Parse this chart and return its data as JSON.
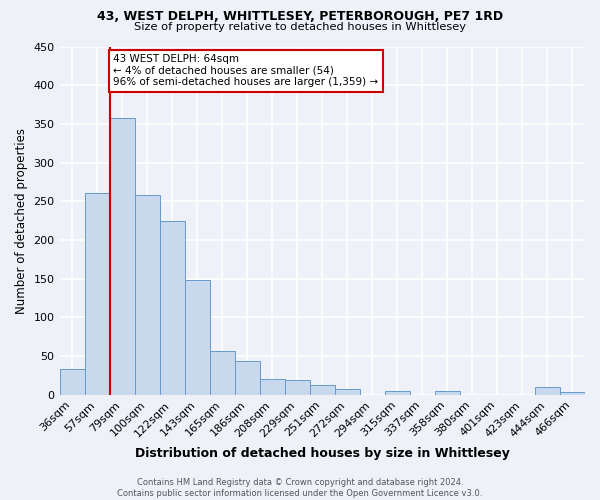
{
  "title": "43, WEST DELPH, WHITTLESEY, PETERBOROUGH, PE7 1RD",
  "subtitle": "Size of property relative to detached houses in Whittlesey",
  "xlabel": "Distribution of detached houses by size in Whittlesey",
  "ylabel": "Number of detached properties",
  "bar_labels": [
    "36sqm",
    "57sqm",
    "79sqm",
    "100sqm",
    "122sqm",
    "143sqm",
    "165sqm",
    "186sqm",
    "208sqm",
    "229sqm",
    "251sqm",
    "272sqm",
    "294sqm",
    "315sqm",
    "337sqm",
    "358sqm",
    "380sqm",
    "401sqm",
    "423sqm",
    "444sqm",
    "466sqm"
  ],
  "bar_values": [
    33,
    261,
    357,
    258,
    225,
    148,
    56,
    44,
    20,
    19,
    13,
    8,
    0,
    5,
    0,
    5,
    0,
    0,
    0,
    10,
    4
  ],
  "bar_color": "#c8d8ed",
  "bar_edge_color": "#6699cc",
  "vline_x_idx": 2,
  "vline_color": "#cc0000",
  "annotation_text": "43 WEST DELPH: 64sqm\n← 4% of detached houses are smaller (54)\n96% of semi-detached houses are larger (1,359) →",
  "annotation_box_color": "white",
  "annotation_box_edge": "#cc0000",
  "footer": "Contains HM Land Registry data © Crown copyright and database right 2024.\nContains public sector information licensed under the Open Government Licence v3.0.",
  "ylim": [
    0,
    450
  ],
  "yticks": [
    0,
    50,
    100,
    150,
    200,
    250,
    300,
    350,
    400,
    450
  ],
  "background_color": "#eef2f8",
  "grid_color": "#d8dee8"
}
